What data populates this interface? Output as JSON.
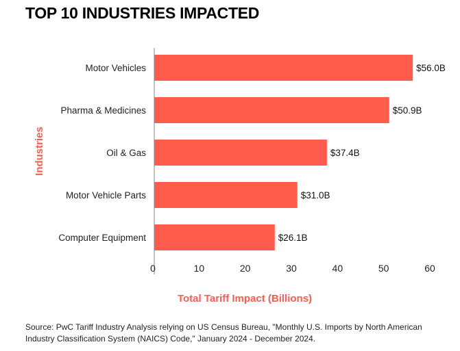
{
  "chart_data": {
    "type": "bar",
    "orientation": "horizontal",
    "title": "TOP 10 INDUSTRIES IMPACTED",
    "xlabel": "Total Tariff Impact (Billions)",
    "ylabel": "Industries",
    "categories": [
      "Motor Vehicles",
      "Pharma & Medicines",
      "Oil & Gas",
      "Motor Vehicle Parts",
      "Computer Equipment"
    ],
    "values": [
      56.0,
      50.9,
      37.4,
      31.0,
      26.1
    ],
    "value_labels": [
      "$56.0B",
      "$50.9B",
      "$37.4B",
      "$31.0B",
      "$26.1B"
    ],
    "xlim": [
      0,
      60
    ],
    "xticks": [
      "0",
      "10",
      "20",
      "30",
      "40",
      "50",
      "60"
    ],
    "grid": false,
    "bar_color": "#ff5c4d",
    "axis_label_color": "#ff5c4d"
  },
  "source": "Source: PwC Tariff Industry Analysis relying on US Census Bureau, \"Monthly U.S. Imports by North American Industry Classification System (NAICS) Code,\" January 2024 - December 2024."
}
